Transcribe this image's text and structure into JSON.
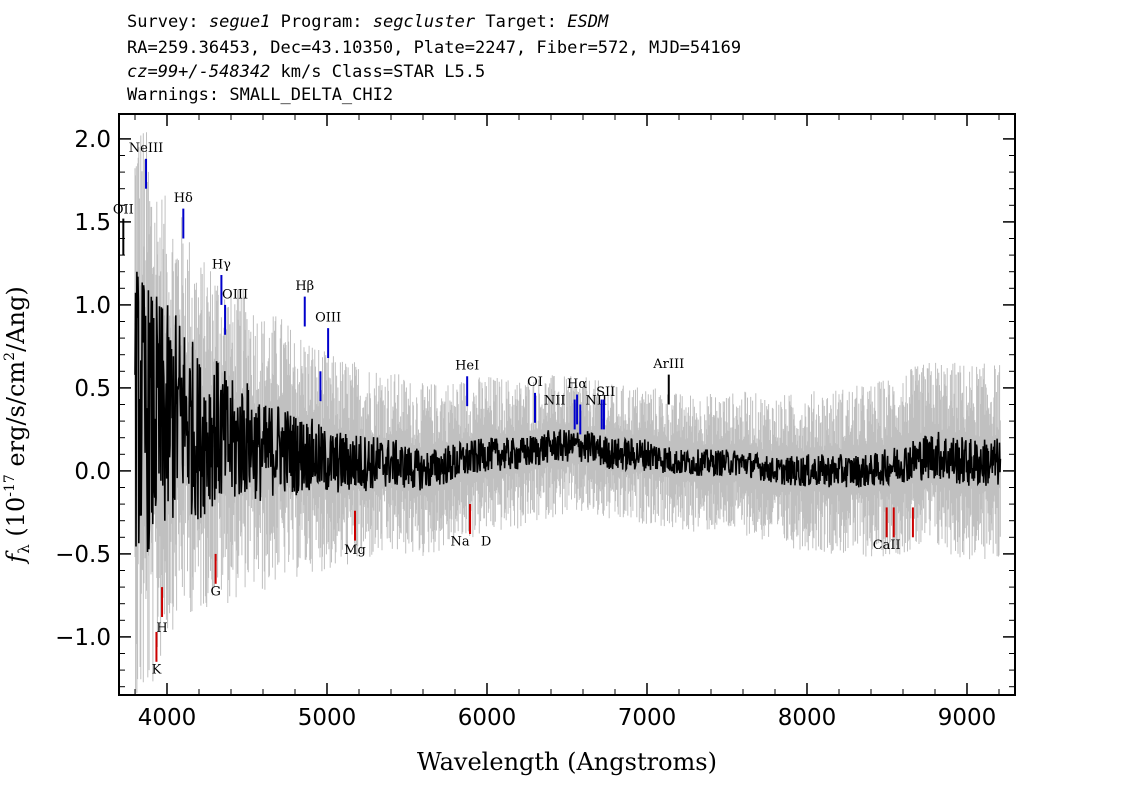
{
  "header": {
    "line1": {
      "survey_label": "Survey:",
      "survey": "segue1",
      "program_label": "Program:",
      "program": "segcluster",
      "target_label": "Target:",
      "target": "ESDM"
    },
    "line2": "RA=259.36453, Dec=43.10350, Plate=2247, Fiber=572, MJD=54169",
    "line3": {
      "cz": "cz=99+/-548342",
      "rest": " km/s Class=STAR L5.5"
    },
    "line4": "Warnings: SMALL_DELTA_CHI2"
  },
  "chart_data": {
    "type": "line",
    "xlabel": "Wavelength (Angstroms)",
    "ylabel_prefix": "f",
    "ylabel_sub": "λ",
    "ylabel_rest": " (10",
    "ylabel_exp": "-17",
    "ylabel_units": " erg/s/cm",
    "ylabel_units_exp": "2",
    "ylabel_end": "/Ang)",
    "xlim": [
      3700,
      9300
    ],
    "ylim": [
      -1.35,
      2.15
    ],
    "xticks": [
      4000,
      5000,
      6000,
      7000,
      8000,
      9000
    ],
    "xtick_labels": [
      "4000",
      "5000",
      "6000",
      "7000",
      "8000",
      "9000"
    ],
    "yticks": [
      -1.0,
      -0.5,
      0.0,
      0.5,
      1.0,
      1.5,
      2.0
    ],
    "ytick_labels": [
      "−1.0",
      "−0.5",
      "0.0",
      "0.5",
      "1.0",
      "1.5",
      "2.0"
    ],
    "series": [
      {
        "role": "error",
        "color": "#c0c0c0",
        "x": [
          3800,
          3900,
          4000,
          4200,
          4500,
          5000,
          5500,
          6000,
          6500,
          7000,
          7500,
          8000,
          8500,
          9000,
          9200
        ],
        "y": [
          1.6,
          1.4,
          1.1,
          0.9,
          0.75,
          0.55,
          0.45,
          0.4,
          0.35,
          0.35,
          0.35,
          0.4,
          0.45,
          0.5,
          0.5
        ]
      },
      {
        "role": "flux",
        "color": "#000000",
        "x": [
          3800,
          3900,
          4000,
          4100,
          4200,
          4300,
          4400,
          4500,
          4600,
          4700,
          4800,
          4900,
          5000,
          5200,
          5400,
          5600,
          5800,
          6000,
          6200,
          6400,
          6600,
          6800,
          7000,
          7200,
          7400,
          7600,
          7800,
          8000,
          8200,
          8400,
          8600,
          8800,
          9000,
          9200
        ],
        "y": [
          0.4,
          0.3,
          0.3,
          0.35,
          0.2,
          0.25,
          0.15,
          0.2,
          0.1,
          0.15,
          0.1,
          0.1,
          0.05,
          0.05,
          0.05,
          0.0,
          0.05,
          0.1,
          0.1,
          0.15,
          0.15,
          0.1,
          0.1,
          0.05,
          0.05,
          0.05,
          0.0,
          0.0,
          0.0,
          0.0,
          0.05,
          0.1,
          0.05,
          0.05
        ],
        "amplitude": [
          0.9,
          0.8,
          0.7,
          0.6,
          0.5,
          0.45,
          0.4,
          0.35,
          0.3,
          0.28,
          0.25,
          0.22,
          0.2,
          0.18,
          0.15,
          0.12,
          0.12,
          0.1,
          0.1,
          0.1,
          0.1,
          0.1,
          0.1,
          0.08,
          0.08,
          0.08,
          0.08,
          0.1,
          0.1,
          0.1,
          0.12,
          0.15,
          0.15,
          0.15
        ]
      }
    ],
    "emission_lines": [
      {
        "label": "NeIII",
        "x": 3869,
        "y0": 1.7,
        "y1": 1.88,
        "ly": 1.92,
        "color": "#0000cc"
      },
      {
        "label": "OII",
        "x": 3727,
        "y0": 1.3,
        "y1": 1.52,
        "ly": 1.55,
        "color": "#000000"
      },
      {
        "label": "Hδ",
        "x": 4102,
        "y0": 1.4,
        "y1": 1.58,
        "ly": 1.62,
        "color": "#0000cc"
      },
      {
        "label": "Hγ",
        "x": 4340,
        "y0": 1.0,
        "y1": 1.18,
        "ly": 1.22,
        "color": "#0000cc"
      },
      {
        "label": "OIII",
        "x": 4363,
        "y0": 0.82,
        "y1": 1.0,
        "ly": 1.04,
        "color": "#0000cc"
      },
      {
        "label": "Hβ",
        "x": 4861,
        "y0": 0.87,
        "y1": 1.05,
        "ly": 1.09,
        "color": "#0000cc"
      },
      {
        "label": "OIII",
        "x": 5007,
        "y0": 0.68,
        "y1": 0.86,
        "ly": 0.9,
        "color": "#0000cc"
      },
      {
        "label": "OIII",
        "x": 4959,
        "y0": 0.42,
        "y1": 0.6,
        "ly": null,
        "color": "#0000cc"
      },
      {
        "label": "HeI",
        "x": 5876,
        "y0": 0.39,
        "y1": 0.57,
        "ly": 0.61,
        "color": "#0000cc"
      },
      {
        "label": "OI",
        "x": 6300,
        "y0": 0.29,
        "y1": 0.47,
        "ly": 0.51,
        "color": "#0000cc"
      },
      {
        "label": "NII",
        "x": 6548,
        "y0": 0.25,
        "y1": 0.43,
        "ly": 0.4,
        "color": "#0000cc"
      },
      {
        "label": "Hα",
        "x": 6563,
        "y0": 0.28,
        "y1": 0.46,
        "ly": 0.5,
        "color": "#0000cc"
      },
      {
        "label": "NII",
        "x": 6583,
        "y0": 0.22,
        "y1": 0.4,
        "ly": 0.4,
        "color": "#0000cc"
      },
      {
        "label": "SII",
        "x": 6717,
        "y0": 0.25,
        "y1": 0.43,
        "ly": 0.45,
        "color": "#0000cc"
      },
      {
        "label": "SII",
        "x": 6731,
        "y0": 0.25,
        "y1": 0.43,
        "ly": null,
        "color": "#0000cc"
      },
      {
        "label": "ArIII",
        "x": 7136,
        "y0": 0.4,
        "y1": 0.58,
        "ly": 0.62,
        "color": "#000000"
      }
    ],
    "absorption_lines": [
      {
        "label": "K",
        "x": 3934,
        "y0": -1.15,
        "y1": -0.97,
        "ly": -1.22,
        "color": "#cc0000"
      },
      {
        "label": "H",
        "x": 3969,
        "y0": -0.88,
        "y1": -0.7,
        "ly": -0.97,
        "color": "#cc0000"
      },
      {
        "label": "G",
        "x": 4304,
        "y0": -0.68,
        "y1": -0.5,
        "ly": -0.75,
        "color": "#cc0000"
      },
      {
        "label": "Mg",
        "x": 5175,
        "y0": -0.42,
        "y1": -0.24,
        "ly": -0.5,
        "color": "#cc0000"
      },
      {
        "label": "Na",
        "x": 5894,
        "y0": -0.38,
        "y1": -0.2,
        "ly": -0.45,
        "color": "#cc0000"
      },
      {
        "label": "D",
        "x": 5894,
        "y0": -0.38,
        "y1": -0.2,
        "ly": -0.45,
        "color": "#cc0000"
      },
      {
        "label": "CaII",
        "x": 8498,
        "y0": -0.4,
        "y1": -0.22,
        "ly": -0.47,
        "color": "#cc0000"
      },
      {
        "label": "CaII",
        "x": 8542,
        "y0": -0.4,
        "y1": -0.22,
        "ly": null,
        "color": "#cc0000"
      },
      {
        "label": "CaII",
        "x": 8662,
        "y0": -0.4,
        "y1": -0.22,
        "ly": null,
        "color": "#cc0000"
      }
    ]
  }
}
